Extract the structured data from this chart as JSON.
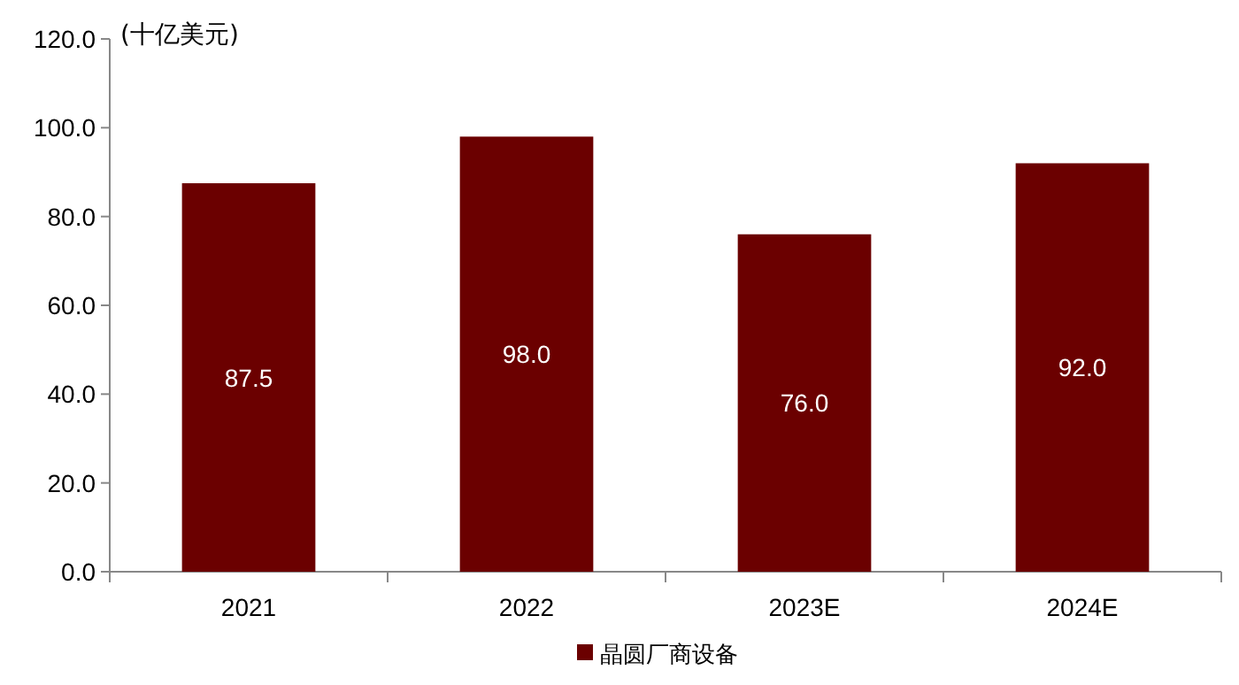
{
  "chart_data": {
    "type": "bar",
    "ylabel": "(十亿美元)",
    "categories": [
      "2021",
      "2022",
      "2023E",
      "2024E"
    ],
    "series": [
      {
        "name": "晶圆厂商设备",
        "color": "#6b0000",
        "values": [
          87.5,
          98.0,
          76.0,
          92.0
        ],
        "value_labels": [
          "87.5",
          "98.0",
          "76.0",
          "92.0"
        ]
      }
    ],
    "ylim": [
      0,
      120
    ],
    "yticks": [
      {
        "value": 0,
        "label": "0.0"
      },
      {
        "value": 20,
        "label": "20.0"
      },
      {
        "value": 40,
        "label": "40.0"
      },
      {
        "value": 60,
        "label": "60.0"
      },
      {
        "value": 80,
        "label": "80.0"
      },
      {
        "value": 100,
        "label": "100.0"
      },
      {
        "value": 120,
        "label": "120.0"
      }
    ],
    "legend": "bottom"
  }
}
